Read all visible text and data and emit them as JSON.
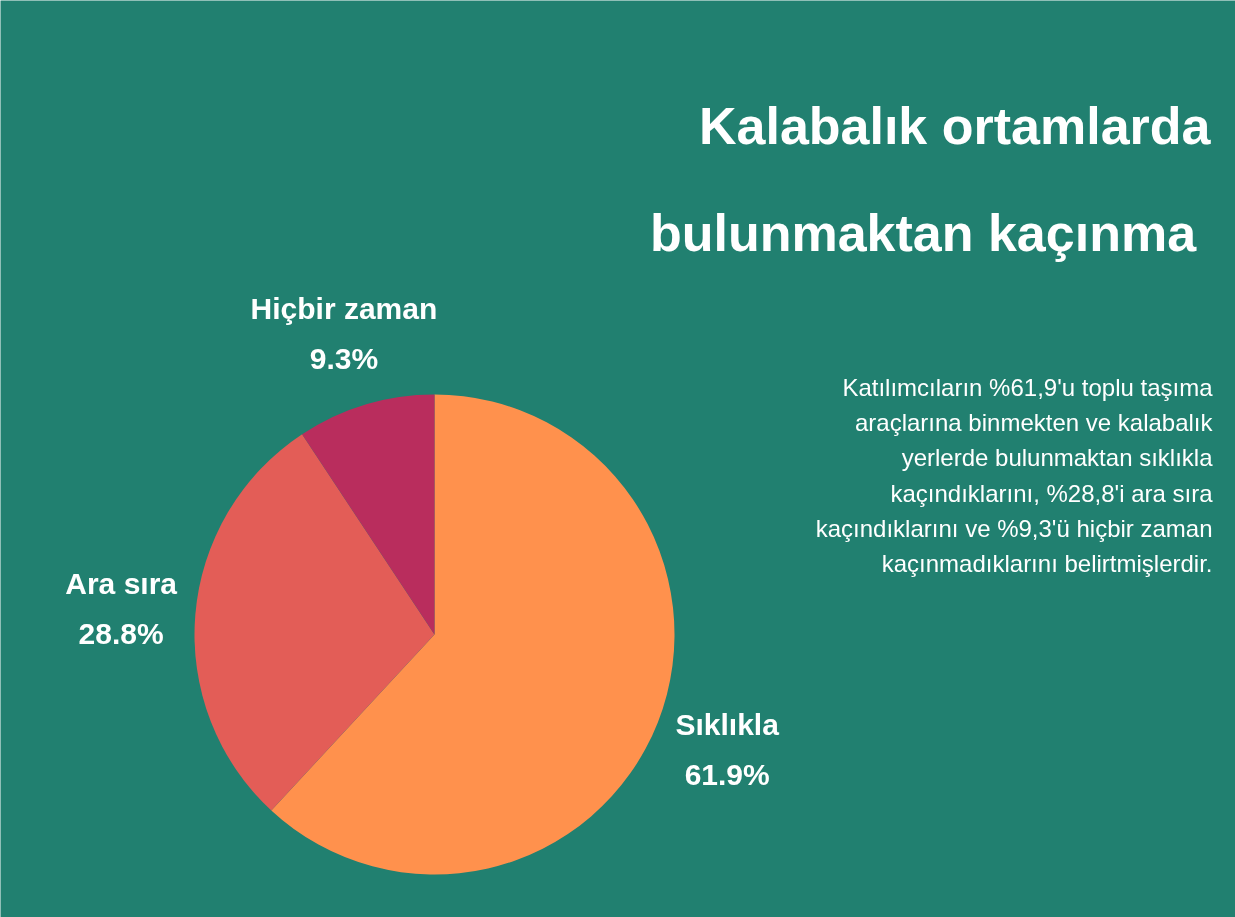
{
  "chart_data": {
    "type": "pie",
    "title": "Kalabalık ortamlarda\nbulunmaktan  kaçınma",
    "categories": [
      "Sıklıkla",
      "Ara sıra",
      "Hiçbir zaman"
    ],
    "values": [
      61.9,
      28.8,
      9.3
    ],
    "colors": [
      "#ff914d",
      "#e35d57",
      "#b92d5d"
    ],
    "value_labels": [
      "61.9%",
      "28.8%",
      "9.3%"
    ],
    "annotations": [
      "Katılımcıların %61,9'u toplu taşıma\naraçlarına binmekten ve kalabalık\nyerlerde bulunmaktan sıklıkla\nkaçındıklarını, %28,8'i ara sıra\nkaçındıklarını ve %9,3'ü hiçbir zaman\nkaçınmadıklarını belirtmişlerdir."
    ]
  }
}
